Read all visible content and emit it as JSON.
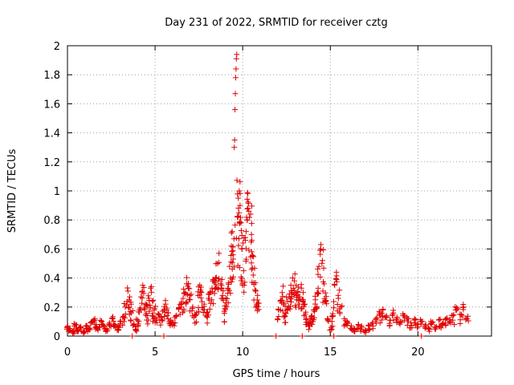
{
  "chart_data": {
    "type": "scatter",
    "title": "Day 231 of 2022, SRMTID for receiver cztg",
    "xlabel": "GPS time / hours",
    "ylabel": "SRMTID / TECUs",
    "xlim": [
      0,
      24.2
    ],
    "ylim": [
      0,
      2
    ],
    "xticks": [
      0,
      5,
      10,
      15,
      20
    ],
    "yticks": [
      0,
      0.2,
      0.4,
      0.6,
      0.8,
      1,
      1.2,
      1.4,
      1.6,
      1.8,
      2
    ],
    "xtick_labels": [
      "0",
      "5",
      "10",
      "15",
      "20"
    ],
    "ytick_labels": [
      "0",
      "0.2",
      "0.4",
      "0.6",
      "0.8",
      "1",
      "1.2",
      "1.4",
      "1.6",
      "1.8",
      "2"
    ],
    "grid": true,
    "marker": "+",
    "color": "#e00000",
    "series": [
      {
        "name": "SRMTID",
        "points": [
          [
            0.0,
            0.06
          ],
          [
            0.15,
            0.05
          ],
          [
            0.3,
            0.03
          ],
          [
            0.45,
            0.08
          ],
          [
            0.6,
            0.04
          ],
          [
            0.75,
            0.06
          ],
          [
            0.9,
            0.03
          ],
          [
            1.05,
            0.07
          ],
          [
            1.2,
            0.05
          ],
          [
            1.35,
            0.09
          ],
          [
            1.5,
            0.11
          ],
          [
            1.65,
            0.08
          ],
          [
            1.8,
            0.06
          ],
          [
            1.95,
            0.1
          ],
          [
            2.1,
            0.07
          ],
          [
            2.25,
            0.05
          ],
          [
            2.4,
            0.09
          ],
          [
            2.55,
            0.12
          ],
          [
            2.7,
            0.08
          ],
          [
            2.85,
            0.06
          ],
          [
            3.0,
            0.1
          ],
          [
            3.15,
            0.13
          ],
          [
            3.3,
            0.2
          ],
          [
            3.45,
            0.31
          ],
          [
            3.55,
            0.27
          ],
          [
            3.65,
            0.16
          ],
          [
            3.8,
            0.08
          ],
          [
            3.9,
            0.04
          ],
          [
            4.0,
            0.11
          ],
          [
            4.1,
            0.18
          ],
          [
            4.2,
            0.27
          ],
          [
            4.3,
            0.35
          ],
          [
            4.45,
            0.22
          ],
          [
            4.55,
            0.14
          ],
          [
            4.65,
            0.26
          ],
          [
            4.75,
            0.33
          ],
          [
            4.85,
            0.24
          ],
          [
            4.95,
            0.18
          ],
          [
            5.05,
            0.12
          ],
          [
            5.2,
            0.15
          ],
          [
            5.35,
            0.13
          ],
          [
            5.5,
            0.18
          ],
          [
            5.6,
            0.22
          ],
          [
            5.75,
            0.16
          ],
          [
            5.9,
            0.11
          ],
          [
            6.05,
            0.09
          ],
          [
            6.2,
            0.14
          ],
          [
            6.35,
            0.19
          ],
          [
            6.5,
            0.22
          ],
          [
            6.6,
            0.26
          ],
          [
            6.7,
            0.3
          ],
          [
            6.8,
            0.36
          ],
          [
            6.9,
            0.33
          ],
          [
            7.0,
            0.25
          ],
          [
            7.15,
            0.2
          ],
          [
            7.3,
            0.14
          ],
          [
            7.45,
            0.28
          ],
          [
            7.55,
            0.35
          ],
          [
            7.65,
            0.3
          ],
          [
            7.8,
            0.22
          ],
          [
            7.95,
            0.16
          ],
          [
            8.05,
            0.26
          ],
          [
            8.15,
            0.3
          ],
          [
            8.25,
            0.33
          ],
          [
            8.35,
            0.38
          ],
          [
            8.45,
            0.4
          ],
          [
            8.55,
            0.5
          ],
          [
            8.65,
            0.57
          ],
          [
            8.75,
            0.36
          ],
          [
            8.85,
            0.28
          ],
          [
            8.95,
            0.17
          ],
          [
            9.05,
            0.23
          ],
          [
            9.15,
            0.33
          ],
          [
            9.25,
            0.48
          ],
          [
            9.35,
            0.62
          ],
          [
            9.4,
            0.72
          ],
          [
            9.45,
            0.56
          ],
          [
            9.5,
            0.67
          ],
          [
            9.52,
            1.3
          ],
          [
            9.54,
            1.35
          ],
          [
            9.56,
            1.56
          ],
          [
            9.58,
            1.67
          ],
          [
            9.6,
            1.78
          ],
          [
            9.62,
            1.84
          ],
          [
            9.64,
            1.91
          ],
          [
            9.66,
            1.94
          ],
          [
            9.7,
            0.82
          ],
          [
            9.75,
            0.95
          ],
          [
            9.8,
            1.0
          ],
          [
            9.85,
            0.9
          ],
          [
            9.9,
            0.78
          ],
          [
            9.95,
            0.6
          ],
          [
            10.05,
            0.45
          ],
          [
            10.15,
            0.66
          ],
          [
            10.25,
            0.8
          ],
          [
            10.3,
            0.88
          ],
          [
            10.35,
            0.86
          ],
          [
            10.45,
            0.84
          ],
          [
            10.5,
            0.7
          ],
          [
            10.55,
            0.55
          ],
          [
            10.6,
            0.42
          ],
          [
            10.7,
            0.32
          ],
          [
            10.8,
            0.22
          ],
          [
            10.85,
            0.28
          ],
          [
            12.05,
            0.18
          ],
          [
            12.15,
            0.24
          ],
          [
            12.25,
            0.3
          ],
          [
            12.35,
            0.22
          ],
          [
            12.45,
            0.16
          ],
          [
            12.55,
            0.24
          ],
          [
            12.65,
            0.27
          ],
          [
            12.75,
            0.35
          ],
          [
            12.85,
            0.4
          ],
          [
            12.95,
            0.38
          ],
          [
            13.05,
            0.35
          ],
          [
            13.15,
            0.3
          ],
          [
            13.25,
            0.26
          ],
          [
            13.35,
            0.33
          ],
          [
            13.45,
            0.3
          ],
          [
            13.55,
            0.22
          ],
          [
            13.65,
            0.12
          ],
          [
            13.75,
            0.08
          ],
          [
            13.85,
            0.1
          ],
          [
            13.95,
            0.14
          ],
          [
            14.05,
            0.18
          ],
          [
            14.15,
            0.25
          ],
          [
            14.25,
            0.3
          ],
          [
            14.35,
            0.48
          ],
          [
            14.45,
            0.6
          ],
          [
            14.55,
            0.52
          ],
          [
            14.65,
            0.36
          ],
          [
            14.75,
            0.24
          ],
          [
            14.85,
            0.12
          ],
          [
            15.05,
            0.06
          ],
          [
            15.15,
            0.14
          ],
          [
            15.25,
            0.35
          ],
          [
            15.35,
            0.44
          ],
          [
            15.45,
            0.28
          ],
          [
            15.6,
            0.2
          ],
          [
            15.8,
            0.12
          ],
          [
            16.0,
            0.09
          ],
          [
            16.2,
            0.07
          ],
          [
            16.4,
            0.05
          ],
          [
            16.6,
            0.08
          ],
          [
            16.8,
            0.06
          ],
          [
            17.0,
            0.04
          ],
          [
            17.2,
            0.07
          ],
          [
            17.4,
            0.09
          ],
          [
            17.6,
            0.12
          ],
          [
            17.8,
            0.15
          ],
          [
            18.0,
            0.18
          ],
          [
            18.2,
            0.14
          ],
          [
            18.4,
            0.11
          ],
          [
            18.6,
            0.16
          ],
          [
            18.8,
            0.13
          ],
          [
            19.0,
            0.1
          ],
          [
            19.2,
            0.14
          ],
          [
            19.4,
            0.12
          ],
          [
            19.6,
            0.09
          ],
          [
            19.8,
            0.11
          ],
          [
            20.0,
            0.08
          ],
          [
            20.2,
            0.1
          ],
          [
            20.4,
            0.07
          ],
          [
            20.6,
            0.05
          ],
          [
            20.8,
            0.09
          ],
          [
            21.0,
            0.06
          ],
          [
            21.2,
            0.11
          ],
          [
            21.4,
            0.08
          ],
          [
            21.6,
            0.12
          ],
          [
            21.8,
            0.1
          ],
          [
            22.0,
            0.14
          ],
          [
            22.2,
            0.18
          ],
          [
            22.4,
            0.15
          ],
          [
            22.6,
            0.2
          ],
          [
            22.8,
            0.12
          ]
        ]
      }
    ],
    "zero_points_x": [
      3.7,
      5.5,
      11.9,
      13.4,
      15.2,
      20.2
    ]
  }
}
